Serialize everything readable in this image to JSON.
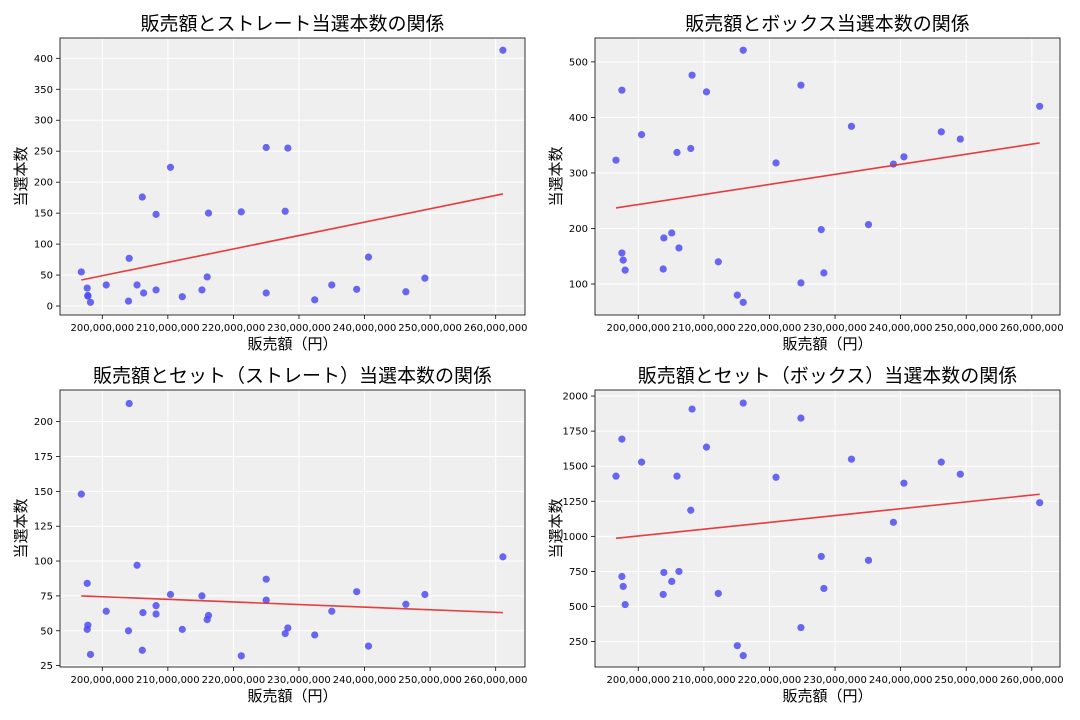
{
  "chart_data": [
    {
      "type": "scatter",
      "title": "販売額とストレート当選本数の関係",
      "xlabel": "販売額（円）",
      "ylabel": "当選本数",
      "xlim": [
        193550000,
        264470000
      ],
      "ylim": [
        -14.5,
        432.8
      ],
      "xticks": [
        200000000,
        210000000,
        220000000,
        230000000,
        240000000,
        250000000,
        260000000
      ],
      "xtick_labels": [
        "200,000,000",
        "210,000,000",
        "220,000,000",
        "230,000,000",
        "240,000,000",
        "250,000,000",
        "260,000,000"
      ],
      "yticks": [
        0,
        50,
        100,
        150,
        200,
        250,
        300,
        350,
        400
      ],
      "ytick_labels": [
        "0",
        "50",
        "100",
        "150",
        "200",
        "250",
        "300",
        "350",
        "400"
      ],
      "grid": true,
      "point_color": "#4d4df0",
      "trend_color": "#e8262a",
      "x": [
        196800000,
        197700000,
        197800000,
        197800000,
        198200000,
        200600000,
        204000000,
        204100000,
        205300000,
        206100000,
        206300000,
        208200000,
        208200000,
        210400000,
        212200000,
        215200000,
        216000000,
        216200000,
        221200000,
        225000000,
        225000000,
        227900000,
        228300000,
        232400000,
        235000000,
        238800000,
        240600000,
        246300000,
        249200000,
        261100000
      ],
      "y": [
        55,
        29,
        16,
        17,
        6,
        34,
        8,
        77,
        34,
        176,
        21,
        148,
        26,
        224,
        15,
        26,
        47,
        150,
        152,
        256,
        21,
        153,
        255,
        10,
        34,
        27,
        79,
        23,
        45,
        413
      ],
      "trend": {
        "x": [
          196800000,
          261100000
        ],
        "y": [
          42,
          181
        ]
      }
    },
    {
      "type": "scatter",
      "title": "販売額とボックス当選本数の関係",
      "xlabel": "販売額（円）",
      "ylabel": "当選本数",
      "xlim": [
        193400000,
        264300000
      ],
      "ylim": [
        44.2,
        543
      ],
      "xticks": [
        200000000,
        210000000,
        220000000,
        230000000,
        240000000,
        250000000,
        260000000
      ],
      "xtick_labels": [
        "200,000,000",
        "210,000,000",
        "220,000,000",
        "230,000,000",
        "240,000,000",
        "250,000,000",
        "260,000,000"
      ],
      "yticks": [
        100,
        200,
        300,
        400,
        500
      ],
      "ytick_labels": [
        "100",
        "200",
        "300",
        "400",
        "500"
      ],
      "grid": true,
      "point_color": "#4d4df0",
      "trend_color": "#e8262a",
      "x": [
        196600000,
        197500000,
        197500000,
        197700000,
        198000000,
        200500000,
        203800000,
        203900000,
        205100000,
        205900000,
        206200000,
        208000000,
        208200000,
        210400000,
        212200000,
        215100000,
        216000000,
        216000000,
        221000000,
        224800000,
        224800000,
        227900000,
        228300000,
        232500000,
        235100000,
        238900000,
        240500000,
        246200000,
        249100000,
        261200000
      ],
      "y": [
        323,
        449,
        156,
        143,
        125,
        369,
        127,
        183,
        192,
        337,
        165,
        344,
        476,
        446,
        140,
        80,
        521,
        67,
        318,
        458,
        102,
        198,
        120,
        384,
        207,
        316,
        329,
        374,
        361,
        420
      ],
      "trend": {
        "x": [
          196600000,
          261200000
        ],
        "y": [
          237,
          354
        ]
      }
    },
    {
      "type": "scatter",
      "title": "販売額とセット（ストレート）当選本数の関係",
      "xlabel": "販売額（円）",
      "ylabel": "当選本数",
      "xlim": [
        193550000,
        264470000
      ],
      "ylim": [
        24,
        222.7
      ],
      "xticks": [
        200000000,
        210000000,
        220000000,
        230000000,
        240000000,
        250000000,
        260000000
      ],
      "xtick_labels": [
        "200,000,000",
        "210,000,000",
        "220,000,000",
        "230,000,000",
        "240,000,000",
        "250,000,000",
        "260,000,000"
      ],
      "yticks": [
        25,
        50,
        75,
        100,
        125,
        150,
        175,
        200
      ],
      "ytick_labels": [
        "25",
        "50",
        "75",
        "100",
        "125",
        "150",
        "175",
        "200"
      ],
      "grid": true,
      "point_color": "#4d4df0",
      "trend_color": "#e8262a",
      "x": [
        196800000,
        197700000,
        197800000,
        197700000,
        198200000,
        200600000,
        204000000,
        204100000,
        205300000,
        206200000,
        206100000,
        208200000,
        208200000,
        210400000,
        212200000,
        215200000,
        216000000,
        216200000,
        221200000,
        225000000,
        225000000,
        227900000,
        228300000,
        232400000,
        235000000,
        238800000,
        240600000,
        246300000,
        249200000,
        261100000
      ],
      "y": [
        148,
        84,
        54,
        51,
        33,
        64,
        50,
        213,
        97,
        63,
        36,
        68,
        62,
        76,
        51,
        75,
        58,
        61,
        32,
        87,
        72,
        48,
        52,
        47,
        64,
        78,
        39,
        69,
        76,
        103
      ],
      "trend": {
        "x": [
          196800000,
          261100000
        ],
        "y": [
          75,
          63
        ]
      }
    },
    {
      "type": "scatter",
      "title": "販売額とセット（ボックス）当選本数の関係",
      "xlabel": "販売額（円）",
      "ylabel": "当選本数",
      "xlim": [
        193400000,
        264300000
      ],
      "ylim": [
        69,
        2043
      ],
      "xticks": [
        200000000,
        210000000,
        220000000,
        230000000,
        240000000,
        250000000,
        260000000
      ],
      "xtick_labels": [
        "200,000,000",
        "210,000,000",
        "220,000,000",
        "230,000,000",
        "240,000,000",
        "250,000,000",
        "260,000,000"
      ],
      "yticks": [
        250,
        500,
        750,
        1000,
        1250,
        1500,
        1750,
        2000
      ],
      "ytick_labels": [
        "250",
        "500",
        "750",
        "1000",
        "1250",
        "1500",
        "1750",
        "2000"
      ],
      "grid": true,
      "point_color": "#4d4df0",
      "trend_color": "#e8262a",
      "x": [
        196600000,
        197500000,
        197500000,
        197700000,
        198000000,
        200500000,
        203800000,
        203900000,
        205100000,
        205900000,
        206200000,
        208000000,
        208200000,
        210400000,
        212200000,
        215100000,
        216000000,
        216000000,
        221000000,
        224800000,
        224800000,
        227900000,
        228300000,
        232500000,
        235100000,
        238900000,
        240500000,
        246200000,
        249100000,
        261200000
      ],
      "y": [
        1429,
        1693,
        714,
        643,
        514,
        1529,
        586,
        743,
        679,
        1429,
        750,
        1186,
        1907,
        1636,
        593,
        221,
        1950,
        150,
        1421,
        1843,
        350,
        857,
        629,
        1550,
        829,
        1100,
        1379,
        1529,
        1443,
        1240
      ],
      "trend": {
        "x": [
          196600000,
          261200000
        ],
        "y": [
          986,
          1300
        ]
      }
    }
  ]
}
